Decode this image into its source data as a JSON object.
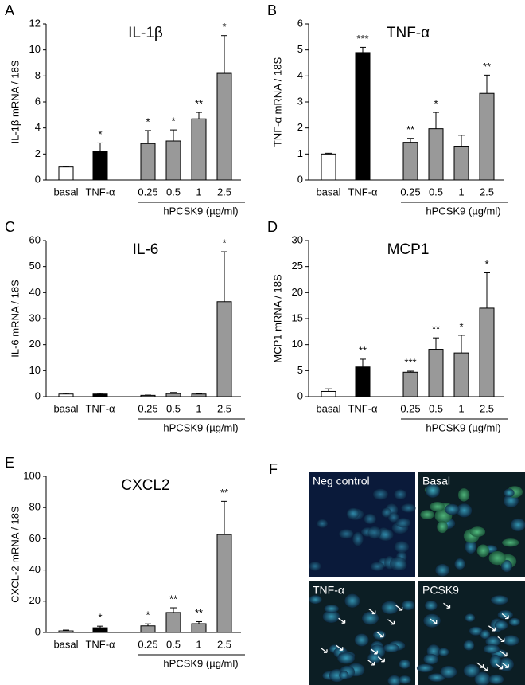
{
  "chart_data": [
    {
      "type": "bar",
      "panel": "A",
      "title": "IL-1β",
      "ylabel": "IL-1β mRNA / 18S",
      "group_label": "hPCSK9 (µg/ml)",
      "categories": [
        "basal",
        "TNF-α",
        "0.25",
        "0.5",
        "1",
        "2.5"
      ],
      "values": [
        1.0,
        2.2,
        2.8,
        3.0,
        4.7,
        8.2
      ],
      "errors": [
        0.05,
        0.65,
        1.0,
        0.85,
        0.5,
        2.9
      ],
      "annotations": [
        null,
        "*",
        "*",
        "*",
        "**",
        "*"
      ],
      "colors": [
        "#ffffff",
        "#000000",
        "#999999",
        "#999999",
        "#999999",
        "#999999"
      ],
      "ylim": [
        0,
        12
      ],
      "yticks": [
        0,
        2,
        4,
        6,
        8,
        10,
        12
      ]
    },
    {
      "type": "bar",
      "panel": "B",
      "title": "TNF-α",
      "ylabel": "TNF-α mRNA / 18S",
      "group_label": "hPCSK9 (µg/ml)",
      "categories": [
        "basal",
        "TNF-α",
        "0.25",
        "0.5",
        "1",
        "2.5"
      ],
      "values": [
        1.0,
        4.9,
        1.45,
        1.97,
        1.3,
        3.33
      ],
      "errors": [
        0.03,
        0.2,
        0.15,
        0.63,
        0.42,
        0.7
      ],
      "annotations": [
        null,
        "***",
        "**",
        "*",
        null,
        "**"
      ],
      "colors": [
        "#ffffff",
        "#000000",
        "#999999",
        "#999999",
        "#999999",
        "#999999"
      ],
      "ylim": [
        0,
        6
      ],
      "yticks": [
        0,
        1,
        2,
        3,
        4,
        5,
        6
      ]
    },
    {
      "type": "bar",
      "panel": "C",
      "title": "IL-6",
      "ylabel": "IL-6 mRNA / 18S",
      "group_label": "hPCSK9 (µg/ml)",
      "categories": [
        "basal",
        "TNF-α",
        "0.25",
        "0.5",
        "1",
        "2.5"
      ],
      "values": [
        1.0,
        1.0,
        0.5,
        1.2,
        1.0,
        36.5
      ],
      "errors": [
        0.3,
        0.3,
        0.1,
        0.4,
        0.1,
        19.2
      ],
      "annotations": [
        null,
        null,
        null,
        null,
        null,
        "*"
      ],
      "colors": [
        "#ffffff",
        "#000000",
        "#999999",
        "#999999",
        "#999999",
        "#999999"
      ],
      "ylim": [
        0,
        60
      ],
      "yticks": [
        0,
        10,
        20,
        30,
        40,
        50,
        60
      ]
    },
    {
      "type": "bar",
      "panel": "D",
      "title": "MCP1",
      "ylabel": "MCP1 mRNA / 18S",
      "group_label": "hPCSK9 (µg/ml)",
      "categories": [
        "basal",
        "TNF-α",
        "0.25",
        "0.5",
        "1",
        "2.5"
      ],
      "values": [
        1.0,
        5.7,
        4.7,
        9.1,
        8.4,
        17.0
      ],
      "errors": [
        0.5,
        1.5,
        0.2,
        2.2,
        3.4,
        6.8
      ],
      "annotations": [
        null,
        "**",
        "***",
        "**",
        "*",
        "*"
      ],
      "colors": [
        "#ffffff",
        "#000000",
        "#999999",
        "#999999",
        "#999999",
        "#999999"
      ],
      "ylim": [
        0,
        30
      ],
      "yticks": [
        0,
        5,
        10,
        15,
        20,
        25,
        30
      ]
    },
    {
      "type": "bar",
      "panel": "E",
      "title": "CXCL2",
      "ylabel": "CXCL-2 mRNA / 18S",
      "group_label": "hPCSK9 (µg/ml)",
      "categories": [
        "basal",
        "TNF-α",
        "0.25",
        "0.5",
        "1",
        "2.5"
      ],
      "values": [
        1.0,
        3.0,
        4.2,
        12.8,
        5.6,
        62.7
      ],
      "errors": [
        0.5,
        1.0,
        1.3,
        3.0,
        1.3,
        21.3
      ],
      "annotations": [
        null,
        "*",
        "*",
        "**",
        "**",
        "**"
      ],
      "colors": [
        "#ffffff",
        "#000000",
        "#999999",
        "#999999",
        "#999999",
        "#999999"
      ],
      "ylim": [
        0,
        100
      ],
      "yticks": [
        0,
        20,
        40,
        60,
        80,
        100
      ]
    }
  ],
  "micrographs": {
    "panel": "F",
    "labels": [
      "Neg control",
      "Basal",
      "TNF-α",
      "PCSK9"
    ]
  }
}
